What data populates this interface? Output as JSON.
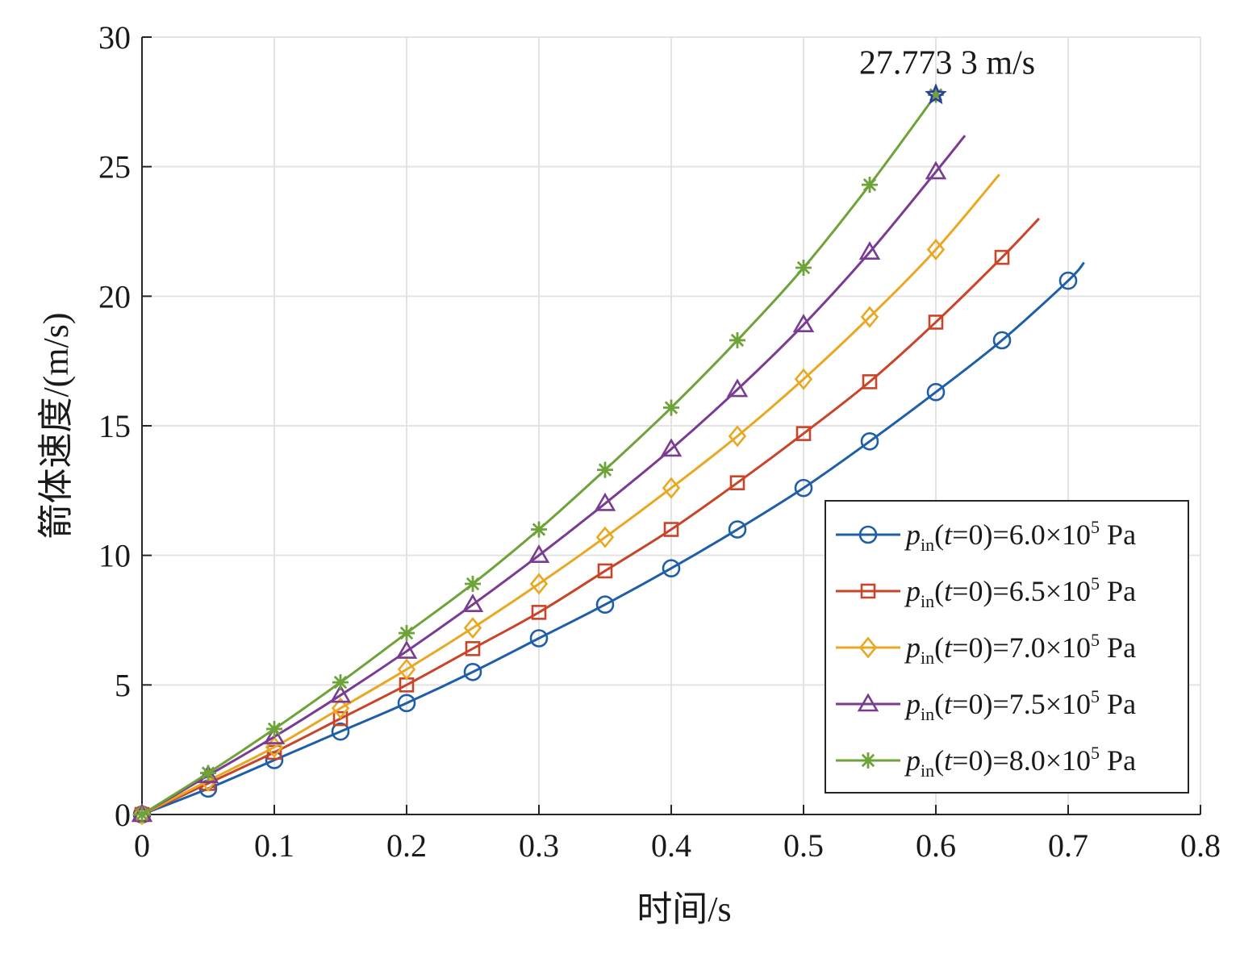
{
  "chart_data": {
    "type": "line",
    "xlabel": "时间/s",
    "ylabel": "箭体速度/(m/s)",
    "xlim": [
      0,
      0.8
    ],
    "ylim": [
      0,
      30
    ],
    "xticks": [
      0,
      0.1,
      0.2,
      0.3,
      0.4,
      0.5,
      0.6,
      0.7,
      0.8
    ],
    "xtick_labels": [
      "0",
      "0.1",
      "0.2",
      "0.3",
      "0.4",
      "0.5",
      "0.6",
      "0.7",
      "0.8"
    ],
    "yticks": [
      0,
      5,
      10,
      15,
      20,
      25,
      30
    ],
    "ytick_labels": [
      "0",
      "5",
      "10",
      "15",
      "20",
      "25",
      "30"
    ],
    "grid": true,
    "legend_position": "lower-right",
    "annotation": {
      "text": "27.773 3 m/s",
      "x": 0.6,
      "y": 27.7733,
      "marker": "star",
      "color": "#2b3fa0"
    },
    "series": [
      {
        "name": "p_in(t=0)=6.0×10^5 Pa",
        "label": {
          "sym": "p",
          "sub": "in",
          "open": "(",
          "t": "t",
          "mid": "=0)=6.0",
          "times": "×10",
          "exp": "5",
          "unit": " Pa"
        },
        "color": "#1f5fa8",
        "marker": "circle",
        "x": [
          0,
          0.05,
          0.1,
          0.15,
          0.2,
          0.25,
          0.3,
          0.35,
          0.4,
          0.45,
          0.5,
          0.55,
          0.6,
          0.65,
          0.7,
          0.712
        ],
        "y": [
          0,
          1.0,
          2.1,
          3.2,
          4.3,
          5.5,
          6.8,
          8.1,
          9.5,
          11.0,
          12.6,
          14.4,
          16.3,
          18.3,
          20.6,
          21.3
        ],
        "marker_every": 1,
        "last_is_endpoint": true
      },
      {
        "name": "p_in(t=0)=6.5×10^5 Pa",
        "label": {
          "sym": "p",
          "sub": "in",
          "open": "(",
          "t": "t",
          "mid": "=0)=6.5",
          "times": "×10",
          "exp": "5",
          "unit": " Pa"
        },
        "color": "#c9452a",
        "marker": "square",
        "x": [
          0,
          0.05,
          0.1,
          0.15,
          0.2,
          0.25,
          0.3,
          0.35,
          0.4,
          0.45,
          0.5,
          0.55,
          0.6,
          0.65,
          0.678
        ],
        "y": [
          0,
          1.2,
          2.4,
          3.7,
          5.0,
          6.4,
          7.8,
          9.4,
          11.0,
          12.8,
          14.7,
          16.7,
          19.0,
          21.5,
          23.0
        ],
        "last_is_endpoint": true
      },
      {
        "name": "p_in(t=0)=7.0×10^5 Pa",
        "label": {
          "sym": "p",
          "sub": "in",
          "open": "(",
          "t": "t",
          "mid": "=0)=7.0",
          "times": "×10",
          "exp": "5",
          "unit": " Pa"
        },
        "color": "#e8a822",
        "marker": "diamond",
        "x": [
          0,
          0.05,
          0.1,
          0.15,
          0.2,
          0.25,
          0.3,
          0.35,
          0.4,
          0.45,
          0.5,
          0.55,
          0.6,
          0.648
        ],
        "y": [
          0,
          1.3,
          2.6,
          4.1,
          5.6,
          7.2,
          8.9,
          10.7,
          12.6,
          14.6,
          16.8,
          19.2,
          21.8,
          24.7
        ],
        "last_is_endpoint": true
      },
      {
        "name": "p_in(t=0)=7.5×10^5 Pa",
        "label": {
          "sym": "p",
          "sub": "in",
          "open": "(",
          "t": "t",
          "mid": "=0)=7.5",
          "times": "×10",
          "exp": "5",
          "unit": " Pa"
        },
        "color": "#7a3b93",
        "marker": "triangle",
        "x": [
          0,
          0.05,
          0.1,
          0.15,
          0.2,
          0.25,
          0.3,
          0.35,
          0.4,
          0.45,
          0.5,
          0.55,
          0.6,
          0.622
        ],
        "y": [
          0,
          1.5,
          3.0,
          4.6,
          6.3,
          8.1,
          10.0,
          12.0,
          14.1,
          16.4,
          18.9,
          21.7,
          24.8,
          26.2
        ],
        "last_is_endpoint": true
      },
      {
        "name": "p_in(t=0)=8.0×10^5 Pa",
        "label": {
          "sym": "p",
          "sub": "in",
          "open": "(",
          "t": "t",
          "mid": "=0)=8.0",
          "times": "×10",
          "exp": "5",
          "unit": " Pa"
        },
        "color": "#6ea33a",
        "marker": "asterisk",
        "x": [
          0,
          0.05,
          0.1,
          0.15,
          0.2,
          0.25,
          0.3,
          0.35,
          0.4,
          0.45,
          0.5,
          0.55,
          0.6
        ],
        "y": [
          0,
          1.6,
          3.3,
          5.1,
          7.0,
          8.9,
          11.0,
          13.3,
          15.7,
          18.3,
          21.1,
          24.3,
          27.7733
        ],
        "last_is_endpoint": false
      }
    ]
  }
}
